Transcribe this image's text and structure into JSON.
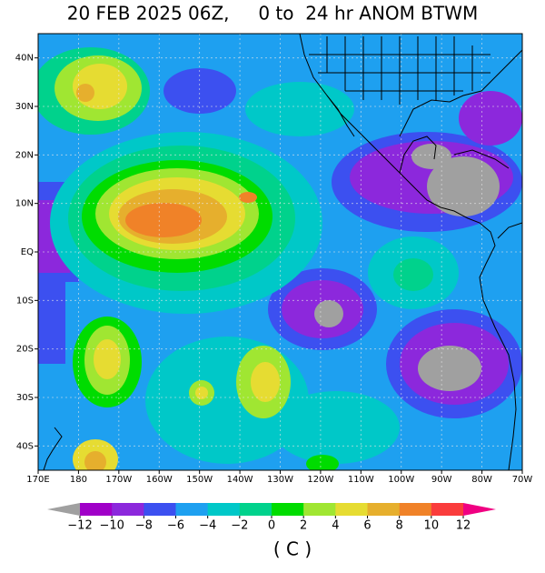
{
  "title": "20 FEB 2025 06Z,     0 to  24 hr ANOM BTWM",
  "lon_labels": [
    "170E",
    "180",
    "170W",
    "160W",
    "150W",
    "140W",
    "130W",
    "120W",
    "110W",
    "100W",
    "90W",
    "80W",
    "70W"
  ],
  "lat_labels": [
    "40N",
    "30N",
    "20N",
    "10N",
    "EQ",
    "10S",
    "20S",
    "30S",
    "40S"
  ],
  "colorbar": {
    "ticks": [
      {
        "value": -12,
        "label": "−12"
      },
      {
        "value": -10,
        "label": "−10"
      },
      {
        "value": -8,
        "label": "−8"
      },
      {
        "value": -6,
        "label": "−6"
      },
      {
        "value": -4,
        "label": "−4"
      },
      {
        "value": -2,
        "label": "−2"
      },
      0,
      2,
      4,
      6,
      8,
      10,
      12
    ],
    "colors": [
      "#a000c8",
      "#8c28dc",
      "#3c50f0",
      "#1ea0f0",
      "#00c8c8",
      "#00d28c",
      "#00dc00",
      "#a0e632",
      "#e6dc32",
      "#e6af2d",
      "#f08228",
      "#fa3c3c"
    ],
    "under_color": "#a0a0a0",
    "over_color": "#f00082",
    "unit": "( C )"
  }
}
